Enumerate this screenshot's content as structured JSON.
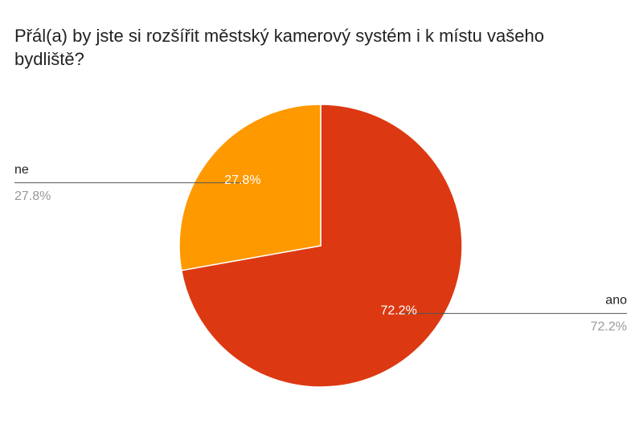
{
  "chart_data": {
    "type": "pie",
    "title": "Přál(a) by jste si rozšířit městský kamerový systém i k místu vašeho bydliště?",
    "categories": [
      "ano",
      "ne"
    ],
    "values": [
      72.2,
      27.8
    ],
    "value_labels": [
      "72.2%",
      "27.8%"
    ],
    "colors": [
      "#dc3912",
      "#ff9900"
    ]
  }
}
